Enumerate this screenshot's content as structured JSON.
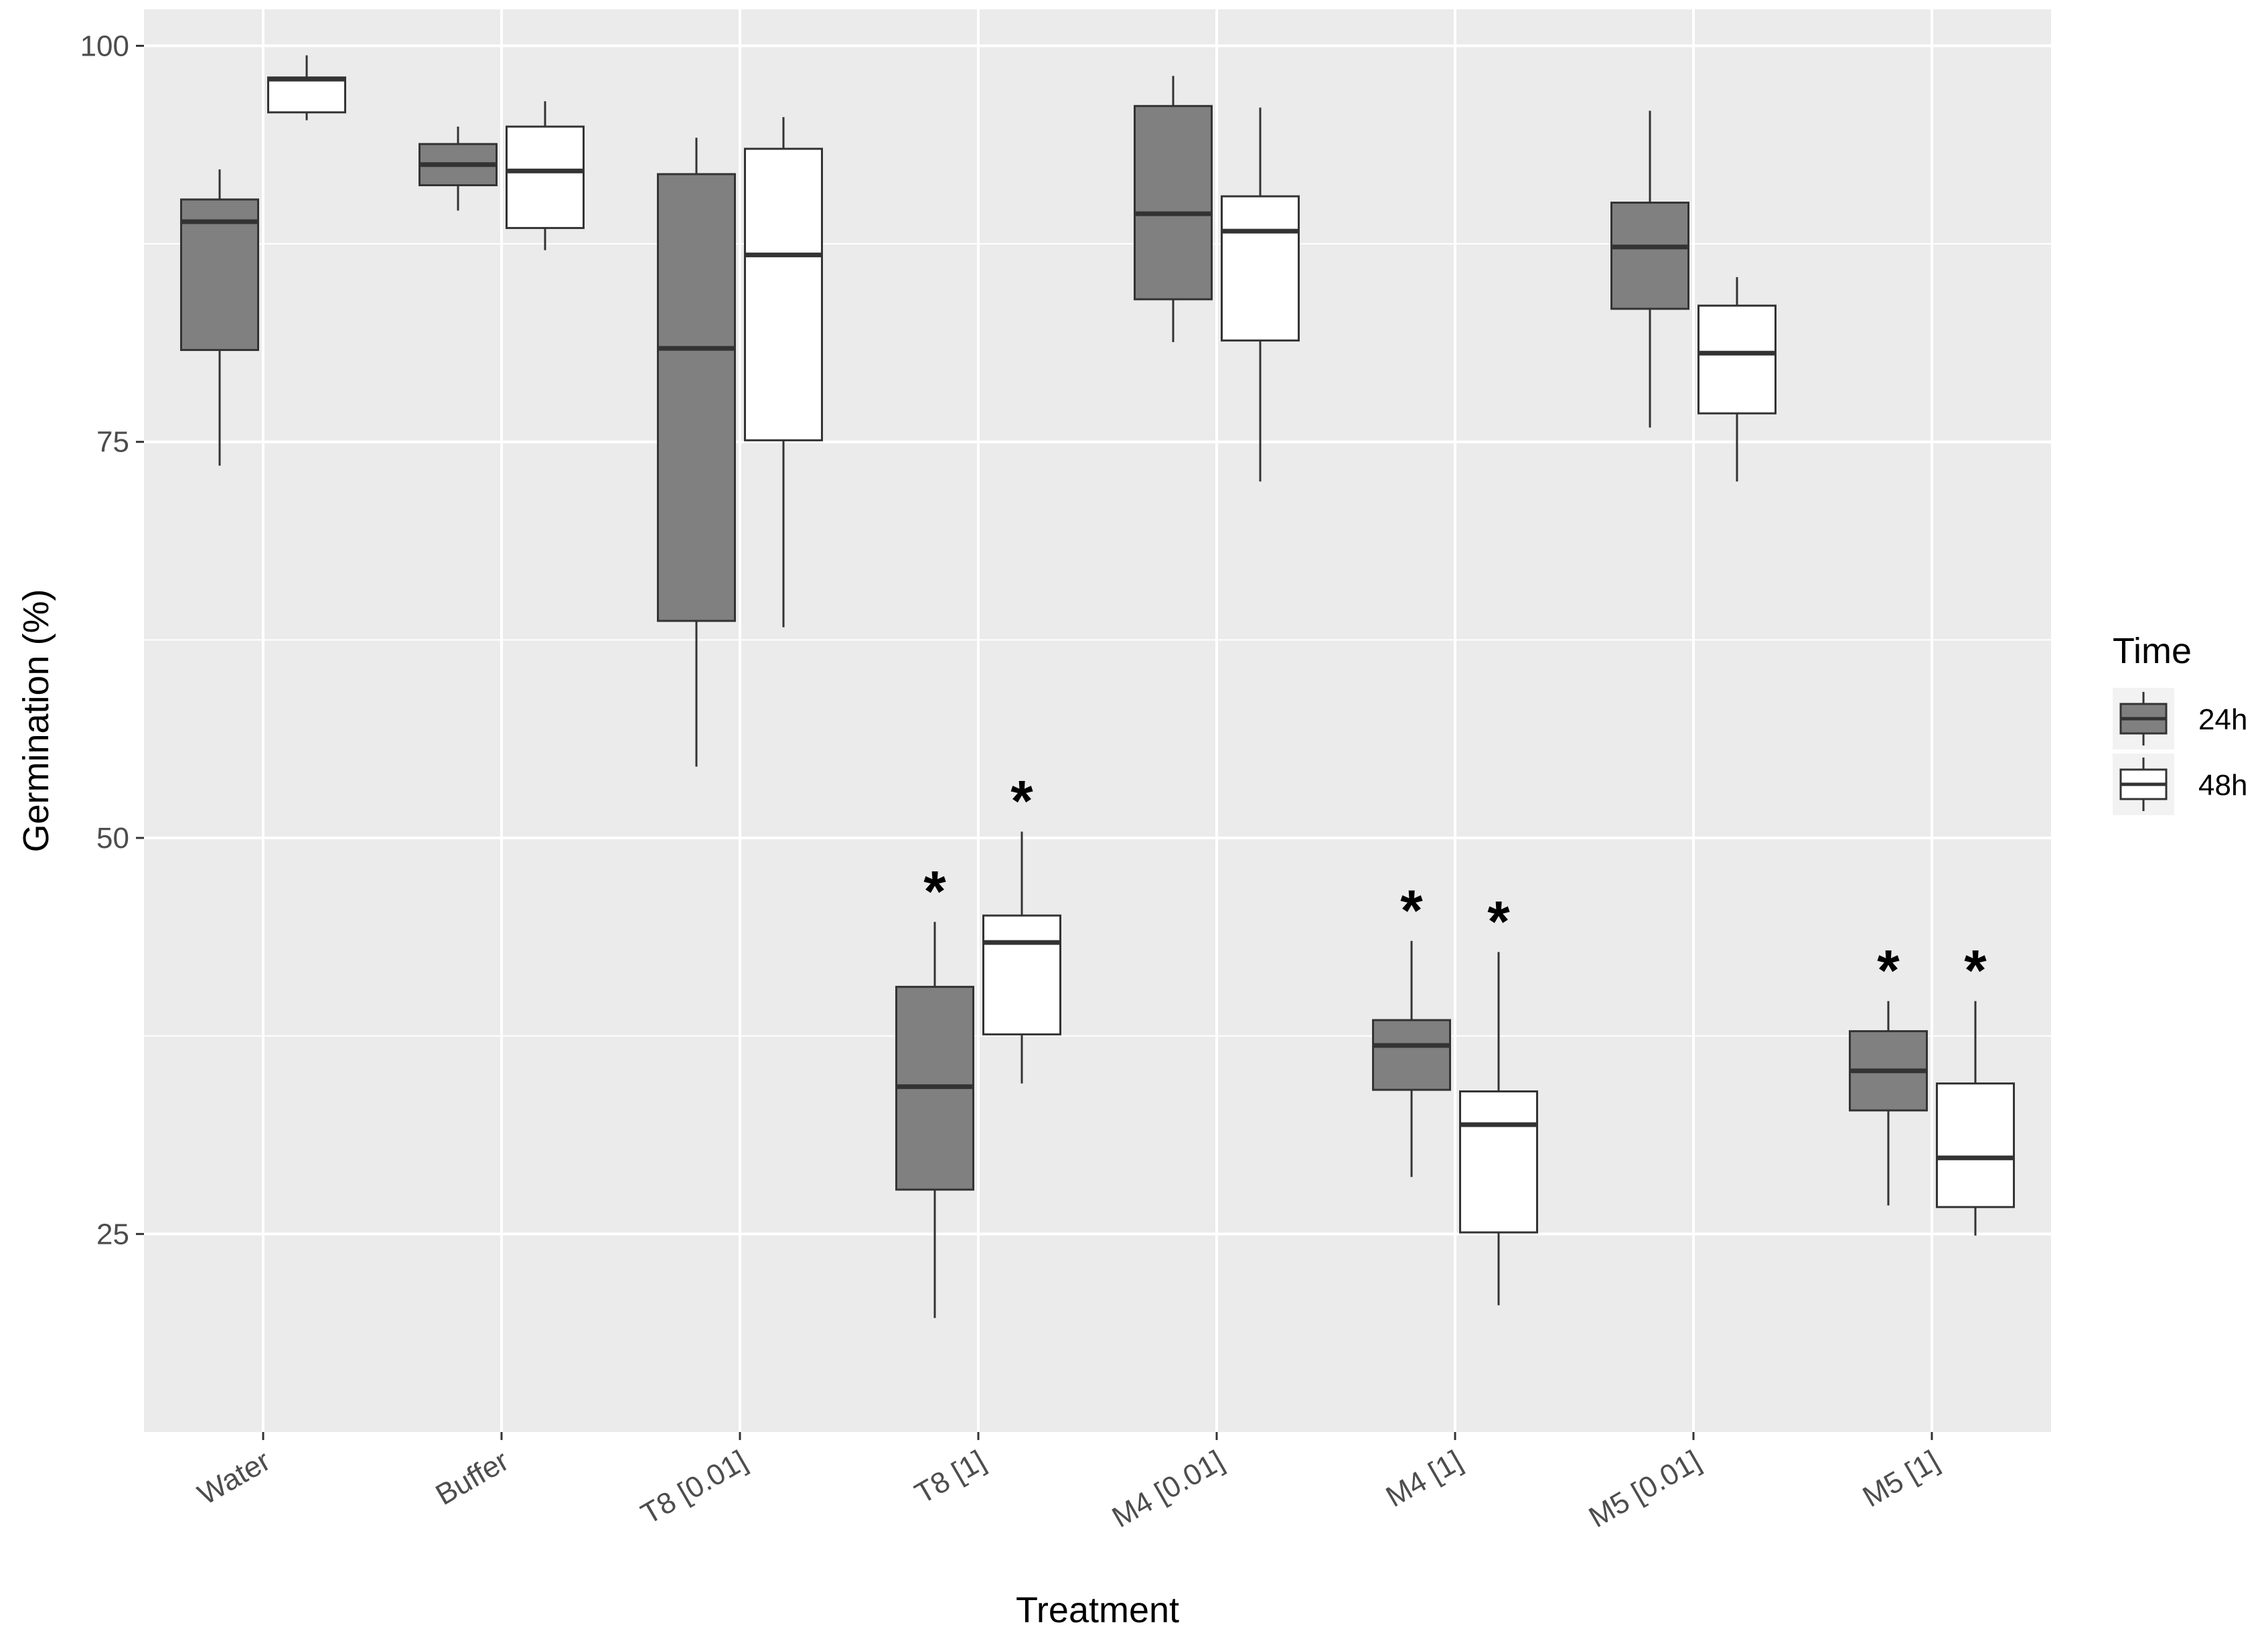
{
  "chart_data": {
    "type": "boxplot",
    "title": "",
    "xlabel": "Treatment",
    "ylabel": "Germination (%)",
    "ylim": [
      12.5,
      102.3
    ],
    "y_ticks": [
      25,
      50,
      75,
      100
    ],
    "y_tick_labels": [
      "25",
      "50",
      "75",
      "100"
    ],
    "grid": true,
    "categories": [
      "Water",
      "Buffer",
      "T8 [0.01]",
      "T8 [1]",
      "M4 [0.01]",
      "M4 [1]",
      "M5 [0.01]",
      "M5 [1]"
    ],
    "legend": {
      "title": "Time",
      "position": "right",
      "entries": [
        "24h",
        "48h"
      ]
    },
    "series": [
      {
        "name": "24h",
        "fill": "#808080",
        "boxes": [
          {
            "min": 73.5,
            "q1": 80.8,
            "median": 88.9,
            "q3": 90.3,
            "max": 92.2,
            "sig": ""
          },
          {
            "min": 89.6,
            "q1": 91.2,
            "median": 92.5,
            "q3": 93.8,
            "max": 94.9,
            "sig": ""
          },
          {
            "min": 54.5,
            "q1": 63.7,
            "median": 80.9,
            "q3": 91.9,
            "max": 94.2,
            "sig": ""
          },
          {
            "min": 19.7,
            "q1": 27.8,
            "median": 34.3,
            "q3": 40.6,
            "max": 44.7,
            "sig": "*"
          },
          {
            "min": 81.3,
            "q1": 84.0,
            "median": 89.4,
            "q3": 96.2,
            "max": 98.1,
            "sig": ""
          },
          {
            "min": 28.6,
            "q1": 34.1,
            "median": 36.9,
            "q3": 38.5,
            "max": 43.5,
            "sig": "*"
          },
          {
            "min": 75.9,
            "q1": 83.4,
            "median": 87.3,
            "q3": 90.1,
            "max": 95.9,
            "sig": ""
          },
          {
            "min": 26.8,
            "q1": 32.8,
            "median": 35.3,
            "q3": 37.8,
            "max": 39.7,
            "sig": "*"
          }
        ]
      },
      {
        "name": "48h",
        "fill": "#ffffff",
        "boxes": [
          {
            "min": 95.3,
            "q1": 95.8,
            "median": 97.9,
            "q3": 98.0,
            "max": 99.4,
            "sig": ""
          },
          {
            "min": 87.1,
            "q1": 88.5,
            "median": 92.1,
            "q3": 94.9,
            "max": 96.5,
            "sig": ""
          },
          {
            "min": 63.3,
            "q1": 75.1,
            "median": 86.8,
            "q3": 93.5,
            "max": 95.5,
            "sig": ""
          },
          {
            "min": 34.5,
            "q1": 37.6,
            "median": 43.4,
            "q3": 45.1,
            "max": 50.4,
            "sig": "*"
          },
          {
            "min": 72.5,
            "q1": 81.4,
            "median": 88.3,
            "q3": 90.5,
            "max": 96.1,
            "sig": ""
          },
          {
            "min": 20.5,
            "q1": 25.1,
            "median": 31.9,
            "q3": 34.0,
            "max": 42.8,
            "sig": "*"
          },
          {
            "min": 72.5,
            "q1": 76.8,
            "median": 80.6,
            "q3": 83.6,
            "max": 85.4,
            "sig": ""
          },
          {
            "min": 24.9,
            "q1": 26.7,
            "median": 29.8,
            "q3": 34.5,
            "max": 39.7,
            "sig": "*"
          }
        ]
      }
    ]
  },
  "colors": {
    "panel_background": "#ebebeb",
    "grid": "#ffffff",
    "box_outline": "#333333",
    "fill_24h": "#808080",
    "fill_48h": "#ffffff"
  }
}
